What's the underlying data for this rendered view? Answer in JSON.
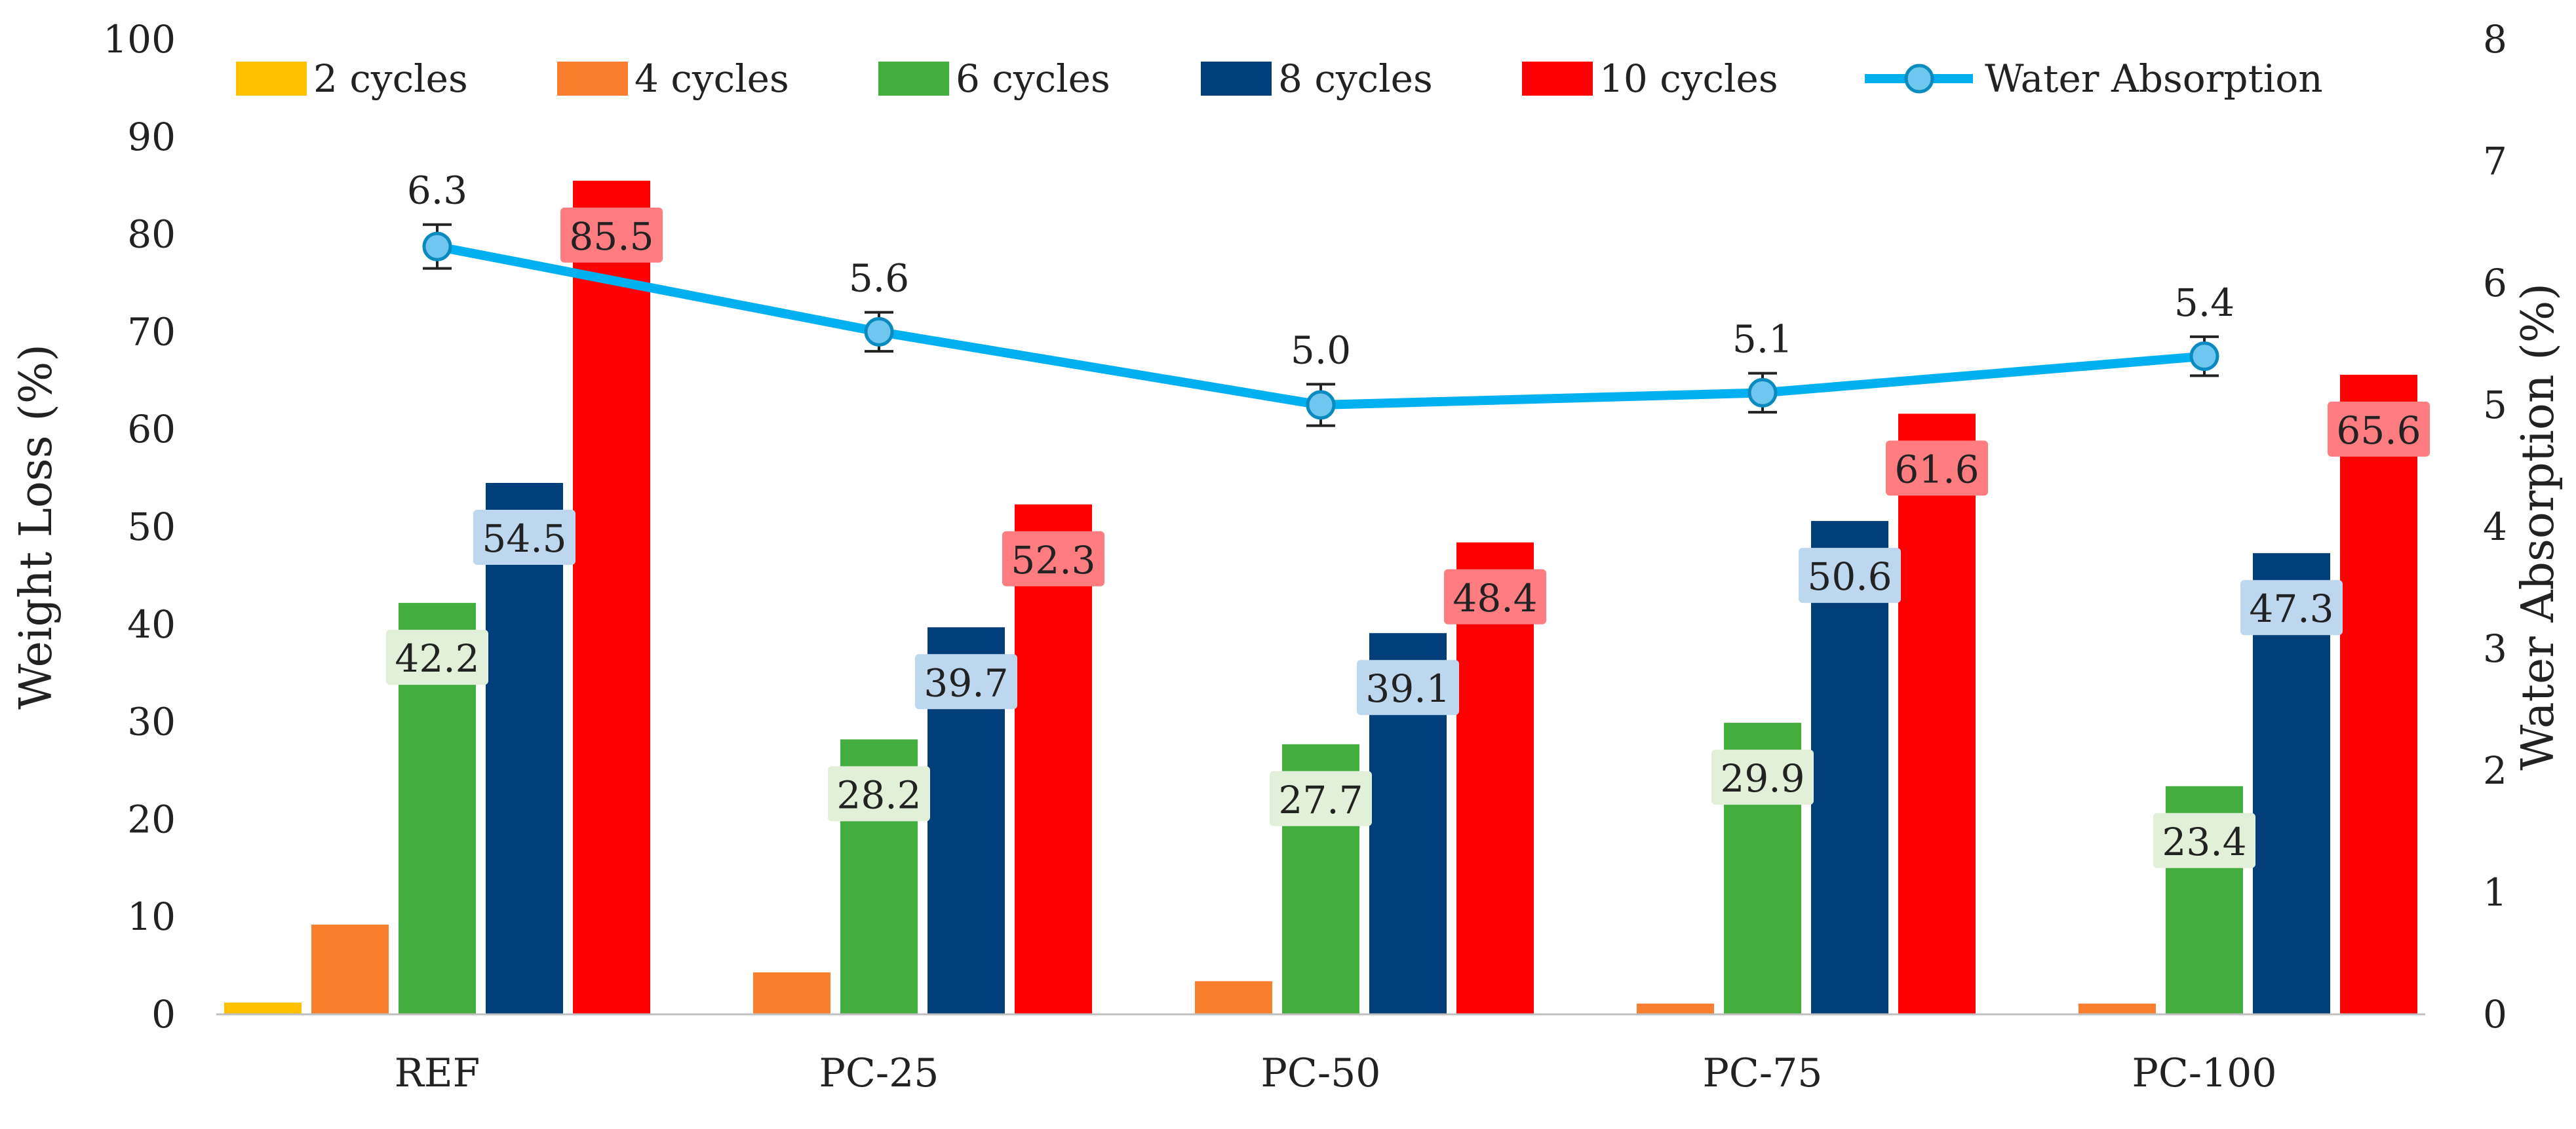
{
  "chart_data": {
    "type": "bar",
    "categories": [
      "REF",
      "PC-25",
      "PC-50",
      "PC-75",
      "PC-100"
    ],
    "series": [
      {
        "name": "2 cycles",
        "color": "#FFC000",
        "values": [
          1.2,
          0,
          0,
          0,
          0
        ],
        "show_labels": false
      },
      {
        "name": "4 cycles",
        "color": "#F97F2E",
        "values": [
          9.2,
          4.3,
          3.4,
          1.1,
          1.1
        ],
        "show_labels": false
      },
      {
        "name": "6 cycles",
        "color": "#43AE3D",
        "values": [
          42.2,
          28.2,
          27.7,
          29.9,
          23.4
        ],
        "show_labels": true,
        "label_bg": "#E2F0D9"
      },
      {
        "name": "8 cycles",
        "color": "#023E7A",
        "values": [
          54.5,
          39.7,
          39.1,
          50.6,
          47.3
        ],
        "show_labels": true,
        "label_bg": "#BDD7EE"
      },
      {
        "name": "10 cycles",
        "color": "#FF0000",
        "values": [
          85.5,
          52.3,
          48.4,
          61.6,
          65.6
        ],
        "show_labels": true,
        "label_bg": "#FF7C80"
      }
    ],
    "line_series": {
      "name": "Water Absorption",
      "color": "#00B0F0",
      "axis": "right",
      "values": [
        6.3,
        5.6,
        5.0,
        5.1,
        5.4
      ],
      "labels": [
        "6.3",
        "5.6",
        "5.0",
        "5.1",
        "5.4"
      ],
      "error": [
        0.18,
        0.16,
        0.17,
        0.16,
        0.16
      ]
    },
    "ylabel": "Weight Loss (%)",
    "ylabel_right": "Water Absorption (%)",
    "xlabel": "",
    "ylim": [
      0,
      100
    ],
    "yticks": [
      0,
      10,
      20,
      30,
      40,
      50,
      60,
      70,
      80,
      90,
      100
    ],
    "ylim_right": [
      0,
      8
    ],
    "yticks_right": [
      0,
      1,
      2,
      3,
      4,
      5,
      6,
      7,
      8
    ],
    "grid": false,
    "legend_position": "top"
  }
}
